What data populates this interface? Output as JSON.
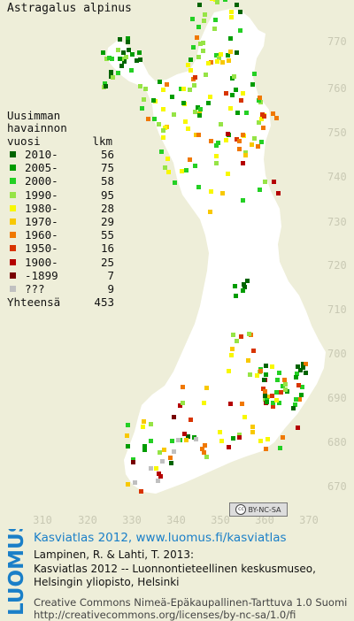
{
  "species_name": "Astragalus alpinus",
  "axis": {
    "y_ticks": [
      "770",
      "760",
      "750",
      "740",
      "730",
      "720",
      "710",
      "700",
      "690",
      "680",
      "670"
    ],
    "x_ticks": [
      "310",
      "320",
      "330",
      "340",
      "350",
      "360",
      "370"
    ]
  },
  "legend": {
    "title_lines": [
      "Uusimman",
      "havainnon"
    ],
    "header_label": "vuosi",
    "header_count": "lkm",
    "rows": [
      {
        "label": "2010-",
        "count": "56",
        "color": "#006400"
      },
      {
        "label": "2005-",
        "count": "75",
        "color": "#009c00"
      },
      {
        "label": "2000-",
        "count": "58",
        "color": "#24d024"
      },
      {
        "label": "1990-",
        "count": "95",
        "color": "#96e446"
      },
      {
        "label": "1980-",
        "count": "28",
        "color": "#f8f800"
      },
      {
        "label": "1970-",
        "count": "29",
        "color": "#f8c800"
      },
      {
        "label": "1960-",
        "count": "55",
        "color": "#f07800"
      },
      {
        "label": "1950-",
        "count": "16",
        "color": "#d83400"
      },
      {
        "label": "1900-",
        "count": "25",
        "color": "#b40000"
      },
      {
        "label": "-1899",
        "count": "7",
        "color": "#780000"
      },
      {
        "label": "???",
        "count": "9",
        "color": "#c0c0c0"
      }
    ],
    "total_label": "Yhteensä",
    "total_count": "453"
  },
  "cc_badge": "BY-NC-SA",
  "cc_symbol": "cc",
  "logo_text": "LUOMUS",
  "credits": {
    "link_text": "Kasviatlas 2012, www.luomus.fi/kasviatlas",
    "citation_lines": [
      "Lampinen, R. & Lahti, T. 2013:",
      "Kasviatlas 2012 -- Luonnontieteellinen keskusmuseo,",
      "Helsingin yliopisto, Helsinki"
    ],
    "license_lines": [
      "Creative Commons Nimeä-Epäkaupallinen-Tarttuva 1.0 Suomi",
      "http://creativecommons.org/licenses/by-nc-sa/1.0/fi"
    ]
  },
  "colors": {
    "map_background": "#eeeed9",
    "land": "#ffffff",
    "axis_text": "#c9c9b4",
    "link": "#1a7fc8",
    "logo": "#1a7fc8"
  }
}
